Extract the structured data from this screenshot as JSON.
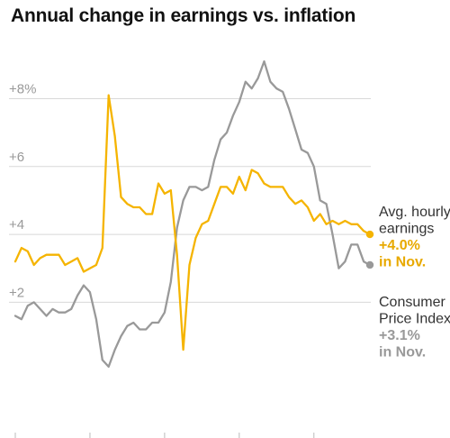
{
  "title": "Annual change in earnings vs. inflation",
  "chart_data": {
    "type": "line",
    "title": "Annual change in earnings vs. inflation",
    "xlabel": "",
    "ylabel": "",
    "ylim": [
      -2,
      9.5
    ],
    "yticks": [
      2,
      4,
      6,
      8
    ],
    "ytick_labels": [
      "+2",
      "+4",
      "+6",
      "+8%"
    ],
    "grid": true,
    "series": [
      {
        "name": "Avg. hourly earnings",
        "color": "#F5B400",
        "end_label": [
          "Avg. hourly",
          "earnings",
          "+4.0%",
          "in Nov."
        ],
        "values": [
          3.2,
          3.6,
          3.5,
          3.1,
          3.3,
          3.4,
          3.4,
          3.4,
          3.1,
          3.2,
          3.3,
          2.9,
          3.0,
          3.1,
          3.6,
          8.1,
          6.9,
          5.1,
          4.9,
          4.8,
          4.8,
          4.6,
          4.6,
          5.5,
          5.2,
          5.3,
          3.4,
          0.6,
          3.1,
          3.9,
          4.3,
          4.4,
          4.9,
          5.4,
          5.4,
          5.2,
          5.7,
          5.3,
          5.9,
          5.8,
          5.5,
          5.4,
          5.4,
          5.4,
          5.1,
          4.9,
          5.0,
          4.8,
          4.4,
          4.6,
          4.3,
          4.4,
          4.3,
          4.4,
          4.3,
          4.3,
          4.1,
          4.0
        ]
      },
      {
        "name": "Consumer Price Index",
        "color": "#999999",
        "end_label": [
          "Consumer",
          "Price Index",
          "+3.1%",
          "in Nov."
        ],
        "values": [
          1.6,
          1.5,
          1.9,
          2.0,
          1.8,
          1.6,
          1.8,
          1.7,
          1.7,
          1.8,
          2.2,
          2.5,
          2.3,
          1.5,
          0.3,
          0.1,
          0.6,
          1.0,
          1.3,
          1.4,
          1.2,
          1.2,
          1.4,
          1.4,
          1.7,
          2.6,
          4.2,
          5.0,
          5.4,
          5.4,
          5.3,
          5.4,
          6.2,
          6.8,
          7.0,
          7.5,
          7.9,
          8.5,
          8.3,
          8.6,
          9.1,
          8.5,
          8.3,
          8.2,
          7.7,
          7.1,
          6.5,
          6.4,
          6.0,
          5.0,
          4.9,
          4.0,
          3.0,
          3.2,
          3.7,
          3.7,
          3.2,
          3.1
        ]
      }
    ]
  }
}
